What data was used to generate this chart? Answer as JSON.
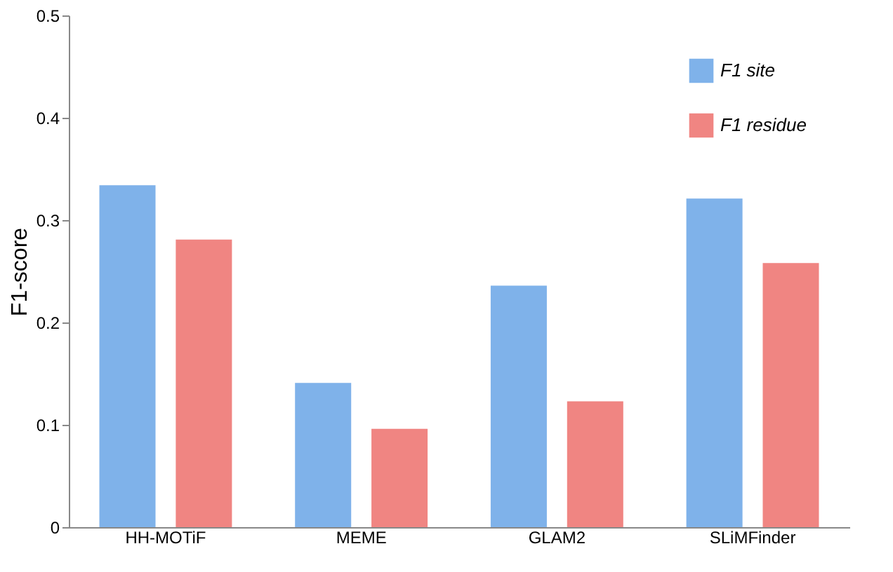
{
  "chart_data": {
    "type": "bar",
    "ylabel": "F1-score",
    "categories": [
      "HH-MOTiF",
      "MEME",
      "GLAM2",
      "SLiMFinder"
    ],
    "series": [
      {
        "name": "F1 site",
        "color": "#7fb2ea",
        "values": [
          0.334,
          0.141,
          0.236,
          0.321
        ]
      },
      {
        "name": "F1 residue",
        "color": "#f08582",
        "values": [
          0.281,
          0.096,
          0.123,
          0.258
        ]
      }
    ],
    "ylim": [
      0,
      0.5
    ],
    "yticks": [
      0,
      0.1,
      0.2,
      0.3,
      0.4,
      0.5
    ],
    "grid": false,
    "legend": "top right"
  }
}
